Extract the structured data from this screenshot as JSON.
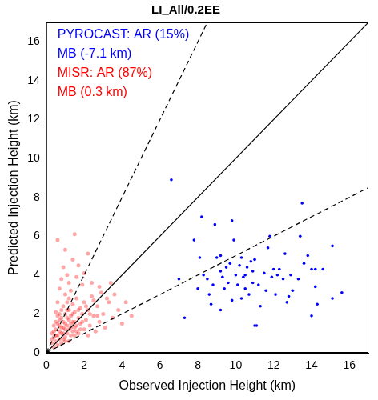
{
  "chart_data": {
    "type": "scatter",
    "title": "LI_All/0.2EE",
    "x_label": "Observed Injection Height (km)",
    "y_label": "Predicted Injection Height (km)",
    "xlim": [
      0,
      17
    ],
    "ylim": [
      0,
      17
    ],
    "xticks": [
      0,
      2,
      4,
      6,
      8,
      10,
      12,
      14,
      16
    ],
    "yticks": [
      0,
      2,
      4,
      6,
      8,
      10,
      12,
      14,
      16
    ],
    "grid": false,
    "annotations": [
      {
        "text": "PYROCAST: AR (15%)",
        "color": "#0000ff"
      },
      {
        "text": "MB (-7.1 km)",
        "color": "#0000ff"
      },
      {
        "text": "MISR: AR (87%)",
        "color": "#ff0000"
      },
      {
        "text": "MB (0.3 km)",
        "color": "#ff0000"
      }
    ],
    "reference_lines": [
      {
        "x": [
          0,
          17
        ],
        "y": [
          0,
          17
        ],
        "line_style": "solid",
        "color": "#000000"
      },
      {
        "x": [
          0,
          8.5
        ],
        "y": [
          0,
          17
        ],
        "line_style": "dashed",
        "color": "#000000"
      },
      {
        "x": [
          0,
          17
        ],
        "y": [
          0,
          8.5
        ],
        "line_style": "dashed",
        "color": "#000000"
      }
    ],
    "series": [
      {
        "name": "MISR",
        "color": "#ff0000",
        "marker": "circle",
        "x": [
          0.3,
          0.4,
          0.5,
          0.5,
          0.6,
          0.6,
          0.7,
          0.7,
          0.7,
          0.8,
          0.8,
          0.8,
          0.9,
          0.9,
          0.9,
          1.0,
          1.0,
          1.0,
          1.0,
          1.1,
          1.1,
          1.1,
          1.2,
          1.2,
          1.2,
          1.3,
          1.3,
          1.3,
          1.4,
          1.4,
          1.5,
          1.5,
          1.5,
          1.6,
          1.6,
          1.7,
          1.7,
          1.8,
          1.8,
          1.9,
          1.9,
          2.0,
          2.0,
          2.1,
          2.2,
          2.2,
          2.3,
          2.4,
          2.5,
          2.6,
          2.7,
          2.8,
          3.0,
          3.1,
          3.3,
          3.5,
          3.8,
          4.0,
          0.4,
          0.5,
          0.6,
          0.7,
          0.8,
          0.9,
          1.0,
          1.1,
          1.2,
          1.4,
          1.6,
          0.6,
          1.5,
          2.0,
          2.4,
          0.3,
          0.4,
          0.5,
          0.6,
          0.7,
          0.8,
          0.9,
          1.0,
          1.1,
          1.2,
          1.3,
          1.4,
          1.5,
          1.6,
          1.7,
          1.8,
          1.9,
          2.1,
          2.3,
          2.5,
          2.7,
          2.9,
          3.2,
          3.6,
          4.2,
          4.5,
          0.5,
          0.6,
          0.7,
          0.8,
          0.9,
          1.0,
          1.1,
          1.2,
          1.3,
          1.4,
          0.3,
          0.4,
          2.8,
          3.4,
          1.7,
          2.2
        ],
        "values": [
          0.5,
          0.8,
          0.6,
          1.2,
          0.9,
          1.5,
          0.7,
          1.1,
          2.0,
          1.3,
          0.5,
          1.8,
          1.0,
          1.6,
          2.4,
          1.2,
          0.8,
          2.0,
          3.0,
          1.4,
          1.0,
          2.6,
          1.7,
          0.6,
          2.2,
          1.3,
          1.9,
          3.2,
          1.1,
          2.5,
          1.6,
          0.9,
          2.1,
          1.4,
          2.8,
          1.8,
          1.0,
          2.3,
          1.5,
          2.0,
          3.5,
          1.2,
          2.6,
          1.7,
          2.2,
          0.9,
          1.4,
          2.9,
          1.9,
          1.1,
          2.4,
          1.6,
          2.0,
          1.3,
          2.6,
          1.8,
          2.2,
          1.5,
          1.4,
          2.1,
          2.6,
          3.3,
          3.8,
          4.4,
          5.3,
          4.0,
          3.6,
          4.8,
          3.9,
          5.8,
          6.1,
          4.1,
          3.6,
          1.0,
          0.3,
          0.9,
          0.4,
          1.4,
          1.0,
          0.7,
          1.5,
          1.8,
          1.2,
          0.9,
          1.6,
          1.3,
          1.1,
          2.2,
          1.2,
          1.6,
          2.4,
          2.0,
          2.7,
          1.9,
          3.1,
          2.8,
          3.0,
          2.6,
          1.9,
          1.6,
          1.9,
          1.7,
          2.2,
          1.3,
          0.6,
          2.2,
          2.8,
          1.5,
          2.0,
          0.7,
          1.1,
          3.4,
          3.6,
          4.5,
          5.1
        ]
      },
      {
        "name": "PYROCAST",
        "color": "#0000ff",
        "marker": "circle",
        "x": [
          6.6,
          7.3,
          7.0,
          7.8,
          8.2,
          8.3,
          8.1,
          8.5,
          8.6,
          8.9,
          8.8,
          8.7,
          9.0,
          9.2,
          9.2,
          9.3,
          9.4,
          9.2,
          9.6,
          9.7,
          9.8,
          9.8,
          9.9,
          10.0,
          10.1,
          10.2,
          10.3,
          10.3,
          10.4,
          10.5,
          10.5,
          10.6,
          10.7,
          10.8,
          10.9,
          10.9,
          11.0,
          11.1,
          11.0,
          11.2,
          11.3,
          11.5,
          11.6,
          11.7,
          11.8,
          11.9,
          12.0,
          12.1,
          12.2,
          12.3,
          12.5,
          12.6,
          12.7,
          12.9,
          13.0,
          13.3,
          13.5,
          13.4,
          13.6,
          13.8,
          14.0,
          14.0,
          14.2,
          14.3,
          14.6,
          15.1,
          15.1,
          15.6,
          8.0,
          9.5,
          12.8,
          14.2
        ],
        "values": [
          8.9,
          1.8,
          3.8,
          5.8,
          7.0,
          4.0,
          4.9,
          3.8,
          3.0,
          6.6,
          3.5,
          2.5,
          4.9,
          5.0,
          4.2,
          3.9,
          3.3,
          2.2,
          3.6,
          4.6,
          6.8,
          2.7,
          5.8,
          4.0,
          3.5,
          4.5,
          4.9,
          2.8,
          3.9,
          4.0,
          3.3,
          4.4,
          3.0,
          4.7,
          4.2,
          3.6,
          1.4,
          1.4,
          4.8,
          3.5,
          2.4,
          4.1,
          3.2,
          5.4,
          6.0,
          3.9,
          4.3,
          3.0,
          4.0,
          4.3,
          3.8,
          5.1,
          2.6,
          4.0,
          3.2,
          3.8,
          7.7,
          6.0,
          4.6,
          5.0,
          1.9,
          4.3,
          4.3,
          2.5,
          4.3,
          5.5,
          2.8,
          3.1,
          3.3,
          4.4,
          2.9,
          3.4
        ]
      }
    ]
  }
}
